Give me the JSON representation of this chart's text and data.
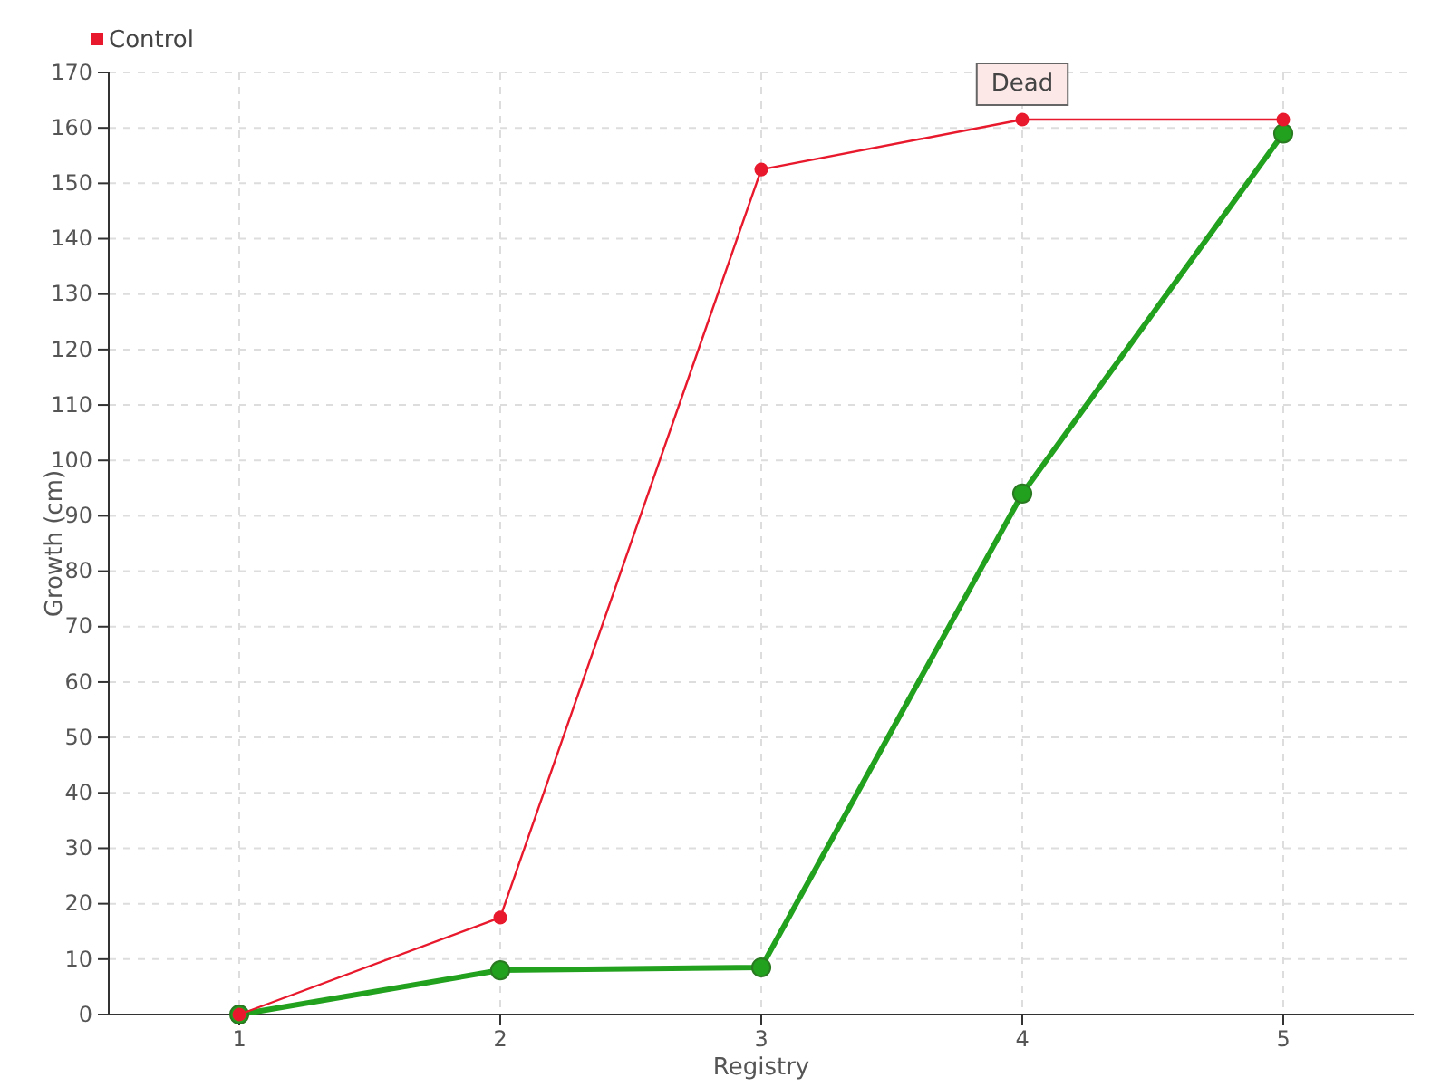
{
  "chart_data": {
    "type": "line",
    "xlabel": "Registry",
    "ylabel": "Growth (cm)",
    "x": [
      1,
      2,
      3,
      4,
      5
    ],
    "xlim": [
      0.5,
      5.5
    ],
    "xticks": [
      1,
      2,
      3,
      4,
      5
    ],
    "ylim": [
      0,
      170
    ],
    "yticks": [
      0,
      10,
      20,
      30,
      40,
      50,
      60,
      70,
      80,
      90,
      100,
      110,
      120,
      130,
      140,
      150,
      160,
      170
    ],
    "grid": true,
    "legend": "top left",
    "marker": "circle",
    "series": [
      {
        "color": "#22a11e",
        "values": [
          0,
          8,
          8.5,
          94,
          159
        ]
      },
      {
        "name": "Control",
        "color": "#e8192c",
        "values": [
          0,
          17.5,
          152.5,
          161.5,
          161.5
        ]
      }
    ],
    "annotations": [
      {
        "text": "Dead",
        "x": 4,
        "y": 161.5
      }
    ]
  }
}
